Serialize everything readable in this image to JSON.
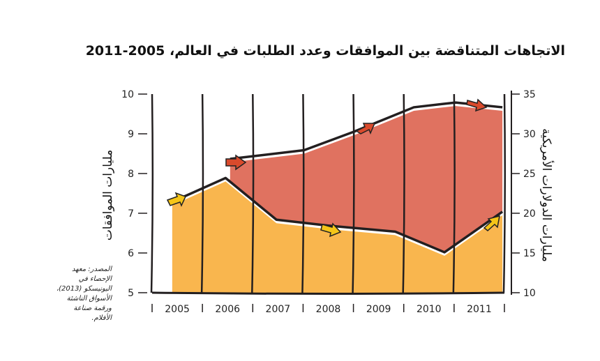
{
  "title": "الاتجاهات المتناقضة بين الموافقات وعدد الطلبات في العالم، 2005-2011",
  "source": "المصدر: معهد الإحصاء في اليونيسكو (2013)، الأسواق الناشئة ورقمة صناعة الأفلام.",
  "chart_data": {
    "type": "area",
    "title": "الاتجاهات المتناقضة بين الموافقات وعدد الطلبات في العالم، 2005-2011",
    "categories": [
      "2005",
      "2006",
      "2007",
      "2008",
      "2009",
      "2010",
      "2011"
    ],
    "xlim": [
      2005,
      2012
    ],
    "left_axis": {
      "label": "مليارات الموافقات",
      "ylim": [
        5,
        10
      ],
      "ticks": [
        "5",
        "6",
        "7",
        "8",
        "9",
        "10"
      ]
    },
    "right_axis": {
      "label": "مليارات الدولارات الأمريكية",
      "ylim": [
        10,
        35
      ],
      "ticks": [
        "10",
        "15",
        "20",
        "25",
        "30",
        "35"
      ]
    },
    "series": [
      {
        "name": "approvals",
        "axis": "left",
        "color": "#f9b64e",
        "x": [
          2005.4,
          2006.46,
          2007.47,
          2008.5,
          2009.83,
          2010.81,
          2011.96
        ],
        "values": [
          7.2,
          7.8,
          6.75,
          6.6,
          6.45,
          5.93,
          6.95
        ]
      },
      {
        "name": "usd",
        "axis": "right",
        "color": "#e07260",
        "x": [
          2006.55,
          2008.02,
          2009.0,
          2010.2,
          2011.03,
          2011.96
        ],
        "values": [
          26.4,
          27.5,
          29.8,
          32.9,
          33.5,
          32.9
        ]
      }
    ],
    "grid": false
  }
}
